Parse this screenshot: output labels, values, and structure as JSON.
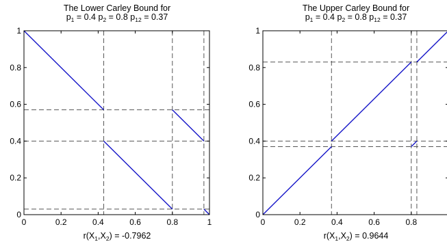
{
  "chart_data": [
    {
      "type": "line",
      "title_line1": "The Lower Carley Bound for",
      "title_line2": {
        "p1_base": "p",
        "p1_sub": "1",
        "p1_val": " = 0.4 ",
        "p2_base": "p",
        "p2_sub": "2",
        "p2_val": " = 0.8 ",
        "p12_base": "p",
        "p12_sub": "12",
        "p12_val": " = 0.37"
      },
      "xlabel": {
        "prefix": "r(X",
        "sub1": "1",
        "mid": ",X",
        "sub2": "2",
        "suffix": ") = -0.7962"
      },
      "xlim": [
        0,
        1
      ],
      "ylim": [
        0,
        1
      ],
      "xticks": [
        "0",
        "0.2",
        "0.4",
        "0.6",
        "0.8",
        "1"
      ],
      "yticks": [
        "0",
        "0.2",
        "0.4",
        "0.6",
        "0.8",
        "1"
      ],
      "grid": false,
      "line_color": "#1515c8",
      "series": [
        {
          "x": [
            0,
            0.43
          ],
          "y": [
            1,
            0.57
          ]
        },
        {
          "x": [
            0.43,
            0.8
          ],
          "y": [
            0.4,
            0.03
          ]
        },
        {
          "x": [
            0.8,
            0.97
          ],
          "y": [
            0.57,
            0.4
          ]
        },
        {
          "x": [
            0.97,
            1.0
          ],
          "y": [
            0.03,
            0.0
          ]
        }
      ],
      "guide_vertical": [
        0.43,
        0.8,
        0.97
      ],
      "guide_horizontal": [
        0.57,
        0.4,
        0.03
      ]
    },
    {
      "type": "line",
      "title_line1": "The Upper Carley Bound for",
      "title_line2": {
        "p1_base": "p",
        "p1_sub": "1",
        "p1_val": " = 0.4 ",
        "p2_base": "p",
        "p2_sub": "2",
        "p2_val": " = 0.8 ",
        "p12_base": "p",
        "p12_sub": "12",
        "p12_val": " = 0.37"
      },
      "xlabel": {
        "prefix": "r(X",
        "sub1": "1",
        "mid": ",X",
        "sub2": "2",
        "suffix": ") = 0.9644"
      },
      "xlim": [
        0,
        1
      ],
      "ylim": [
        0,
        1
      ],
      "xticks": [
        "0",
        "0.2",
        "0.4",
        "0.6",
        "0.8"
      ],
      "yticks": [
        "0",
        "0.2",
        "0.4",
        "0.6",
        "0.8",
        "1"
      ],
      "grid": false,
      "line_color": "#1515c8",
      "series": [
        {
          "x": [
            0,
            0.37
          ],
          "y": [
            0,
            0.37
          ]
        },
        {
          "x": [
            0.37,
            0.8
          ],
          "y": [
            0.4,
            0.83
          ]
        },
        {
          "x": [
            0.8,
            0.83
          ],
          "y": [
            0.37,
            0.4
          ]
        },
        {
          "x": [
            0.83,
            1.0
          ],
          "y": [
            0.83,
            1.0
          ]
        }
      ],
      "guide_vertical": [
        0.37,
        0.8,
        0.83
      ],
      "guide_horizontal": [
        0.83,
        0.4,
        0.37
      ]
    }
  ]
}
